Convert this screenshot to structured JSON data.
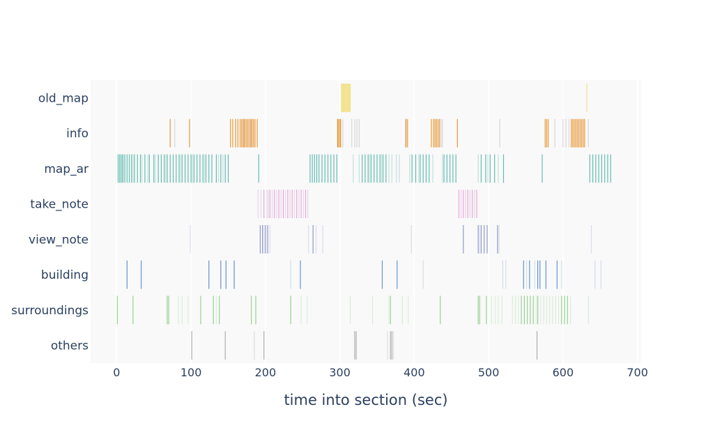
{
  "chart_data": {
    "type": "event-raster",
    "xlabel": "time into section (sec)",
    "xlim": [
      -35,
      705
    ],
    "xticks": [
      0,
      100,
      200,
      300,
      400,
      500,
      600,
      700
    ],
    "grid": true,
    "categories": [
      "old_map",
      "info",
      "map_ar",
      "take_note",
      "view_note",
      "building",
      "surroundings",
      "others"
    ],
    "series": [
      {
        "category": "old_map",
        "color": "#f0e28a",
        "events": [
          302,
          303,
          304,
          305,
          306,
          307,
          308,
          309,
          310,
          311,
          312,
          313,
          314,
          632
        ]
      },
      {
        "category": "info",
        "color": "#e8912c",
        "faint_color": "#c8c8cc",
        "events": [
          72,
          98,
          153,
          156,
          160,
          163,
          166,
          168,
          170,
          172,
          174,
          176,
          178,
          180,
          182,
          184,
          186,
          189,
          297,
          298,
          300,
          301,
          389,
          391,
          423,
          426,
          428,
          430,
          432,
          434,
          458,
          576,
          578,
          580,
          611,
          613,
          615,
          617,
          619,
          621,
          623,
          625,
          627,
          629
        ],
        "faint_events": [
          78,
          160,
          171,
          181,
          304,
          316,
          320,
          323,
          326,
          388,
          436,
          438,
          515,
          589,
          600,
          604,
          608,
          634
        ]
      },
      {
        "category": "map_ar",
        "color": "#5ab8ac",
        "faint_color": "#a9d5cf",
        "events": [
          2,
          4,
          6,
          8,
          11,
          14,
          17,
          20,
          24,
          28,
          32,
          38,
          44,
          50,
          56,
          60,
          64,
          68,
          72,
          76,
          80,
          84,
          88,
          92,
          96,
          100,
          104,
          108,
          112,
          116,
          120,
          124,
          128,
          134,
          140,
          146,
          150,
          191,
          260,
          263,
          266,
          269,
          272,
          276,
          280,
          284,
          288,
          292,
          296,
          330,
          334,
          338,
          342,
          346,
          350,
          354,
          358,
          362,
          397,
          402,
          408,
          412,
          416,
          420,
          440,
          444,
          448,
          452,
          456,
          490,
          496,
          502,
          508,
          520,
          572,
          636,
          640,
          644,
          648,
          652,
          656,
          660,
          664
        ],
        "faint_events": [
          9,
          22,
          34,
          42,
          52,
          66,
          86,
          102,
          118,
          137,
          143,
          318,
          326,
          340,
          356,
          366,
          370,
          376,
          380,
          394,
          406,
          425,
          438,
          486,
          499,
          513
        ]
      },
      {
        "category": "take_note",
        "color": "#ec9fcf",
        "faint_color": "#d9c8e8",
        "events": [
          198,
          206,
          212,
          218,
          224,
          230,
          236,
          242,
          248,
          254,
          460,
          466,
          472,
          478,
          484
        ],
        "faint_events": [
          190,
          194,
          202,
          204,
          209,
          215,
          221,
          227,
          233,
          239,
          245,
          251,
          257,
          463,
          469,
          475,
          481
        ]
      },
      {
        "category": "view_note",
        "color": "#8a92c8",
        "faint_color": "#cdd0e6",
        "events": [
          193,
          196,
          200,
          203,
          264,
          466,
          486,
          490,
          494,
          498,
          512
        ],
        "faint_events": [
          99,
          198,
          206,
          258,
          268,
          277,
          396,
          488,
          514,
          638
        ]
      },
      {
        "category": "building",
        "color": "#5a8fc6",
        "faint_color": "#c6d2e4",
        "events": [
          14,
          33,
          124,
          140,
          147,
          158,
          247,
          357,
          377,
          547,
          555,
          566,
          569,
          577,
          592
        ],
        "faint_events": [
          234,
          412,
          519,
          523,
          551,
          562,
          598,
          643,
          651
        ]
      },
      {
        "category": "surroundings",
        "color": "#8fd08a",
        "faint_color": "#cfe7cc",
        "events": [
          1,
          22,
          68,
          70,
          113,
          130,
          138,
          181,
          187,
          234,
          368,
          435,
          486,
          488,
          497,
          544,
          548,
          552,
          556,
          560,
          566,
          598,
          602,
          606
        ],
        "faint_events": [
          83,
          88,
          96,
          134,
          248,
          256,
          314,
          344,
          366,
          384,
          392,
          504,
          509,
          513,
          518,
          532,
          536,
          540,
          564,
          570,
          574,
          578,
          582,
          586,
          590,
          594,
          610,
          634
        ]
      },
      {
        "category": "others",
        "color": "#a9a9a9",
        "faint_color": "#d2d2d2",
        "events": [
          101,
          146,
          198,
          320,
          322,
          368,
          370,
          565
        ],
        "faint_events": [
          185,
          364,
          372
        ]
      }
    ]
  }
}
